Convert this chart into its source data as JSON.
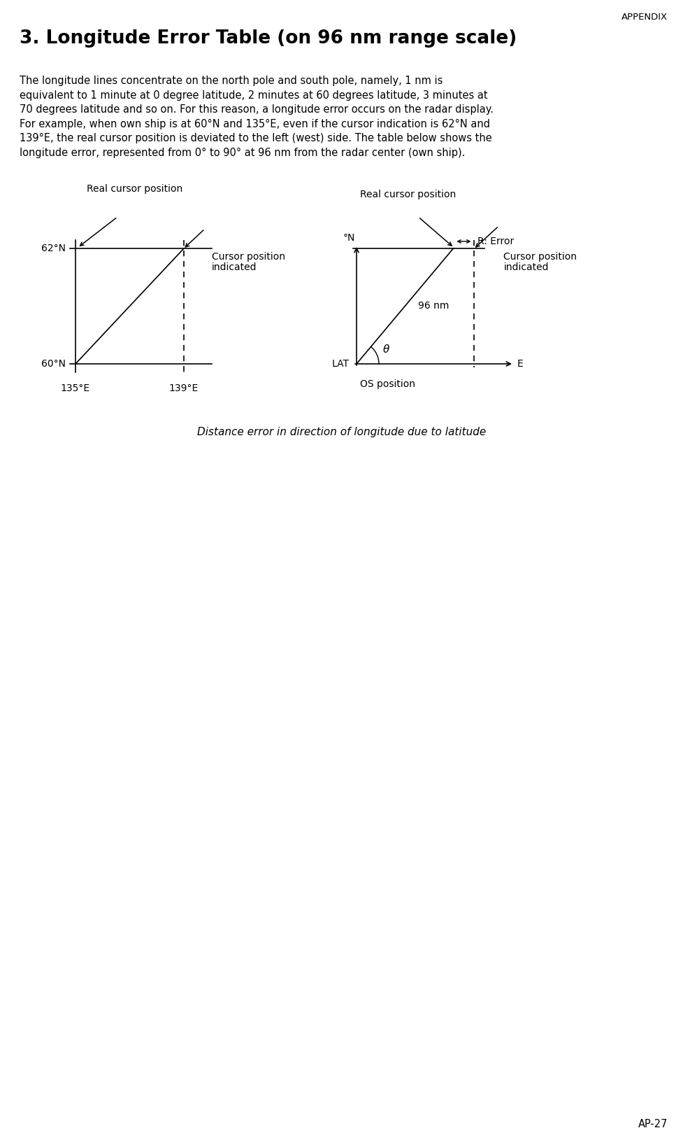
{
  "title": "3. Longitude Error Table (on 96 nm range scale)",
  "appendix_label": "APPENDIX",
  "body_lines": [
    "The longitude lines concentrate on the north pole and south pole, namely, 1 nm is",
    "equivalent to 1 minute at 0 degree latitude, 2 minutes at 60 degrees latitude, 3 minutes at",
    "70 degrees latitude and so on. For this reason, a longitude error occurs on the radar display.",
    "For example, when own ship is at 60°N and 135°E, even if the cursor indication is 62°N and",
    "139°E, the real cursor position is deviated to the left (west) side. The table below shows the",
    "longitude error, represented from 0° to 90° at 96 nm from the radar center (own ship)."
  ],
  "caption": "Distance error in direction of longitude due to latitude",
  "page_label": "AP-27",
  "bg_color": "#ffffff",
  "text_color": "#000000",
  "diagram1": {
    "lat_62_label": "62°N",
    "lat_60_label": "60°N",
    "lon_135_label": "135°E",
    "lon_139_label": "139°E",
    "real_cursor_label": "Real cursor position",
    "cursor_indicated_line1": "Cursor position",
    "cursor_indicated_line2": "indicated"
  },
  "diagram2": {
    "north_label": "°N",
    "east_label": "E",
    "lat_label": "LAT",
    "os_label": "OS position",
    "nm_label": "96 nm",
    "theta_label": "θ",
    "real_cursor_label": "Real cursor position",
    "cursor_indicated_line1": "Cursor position",
    "cursor_indicated_line2": "indicated",
    "r_error_label": "R: Error"
  }
}
